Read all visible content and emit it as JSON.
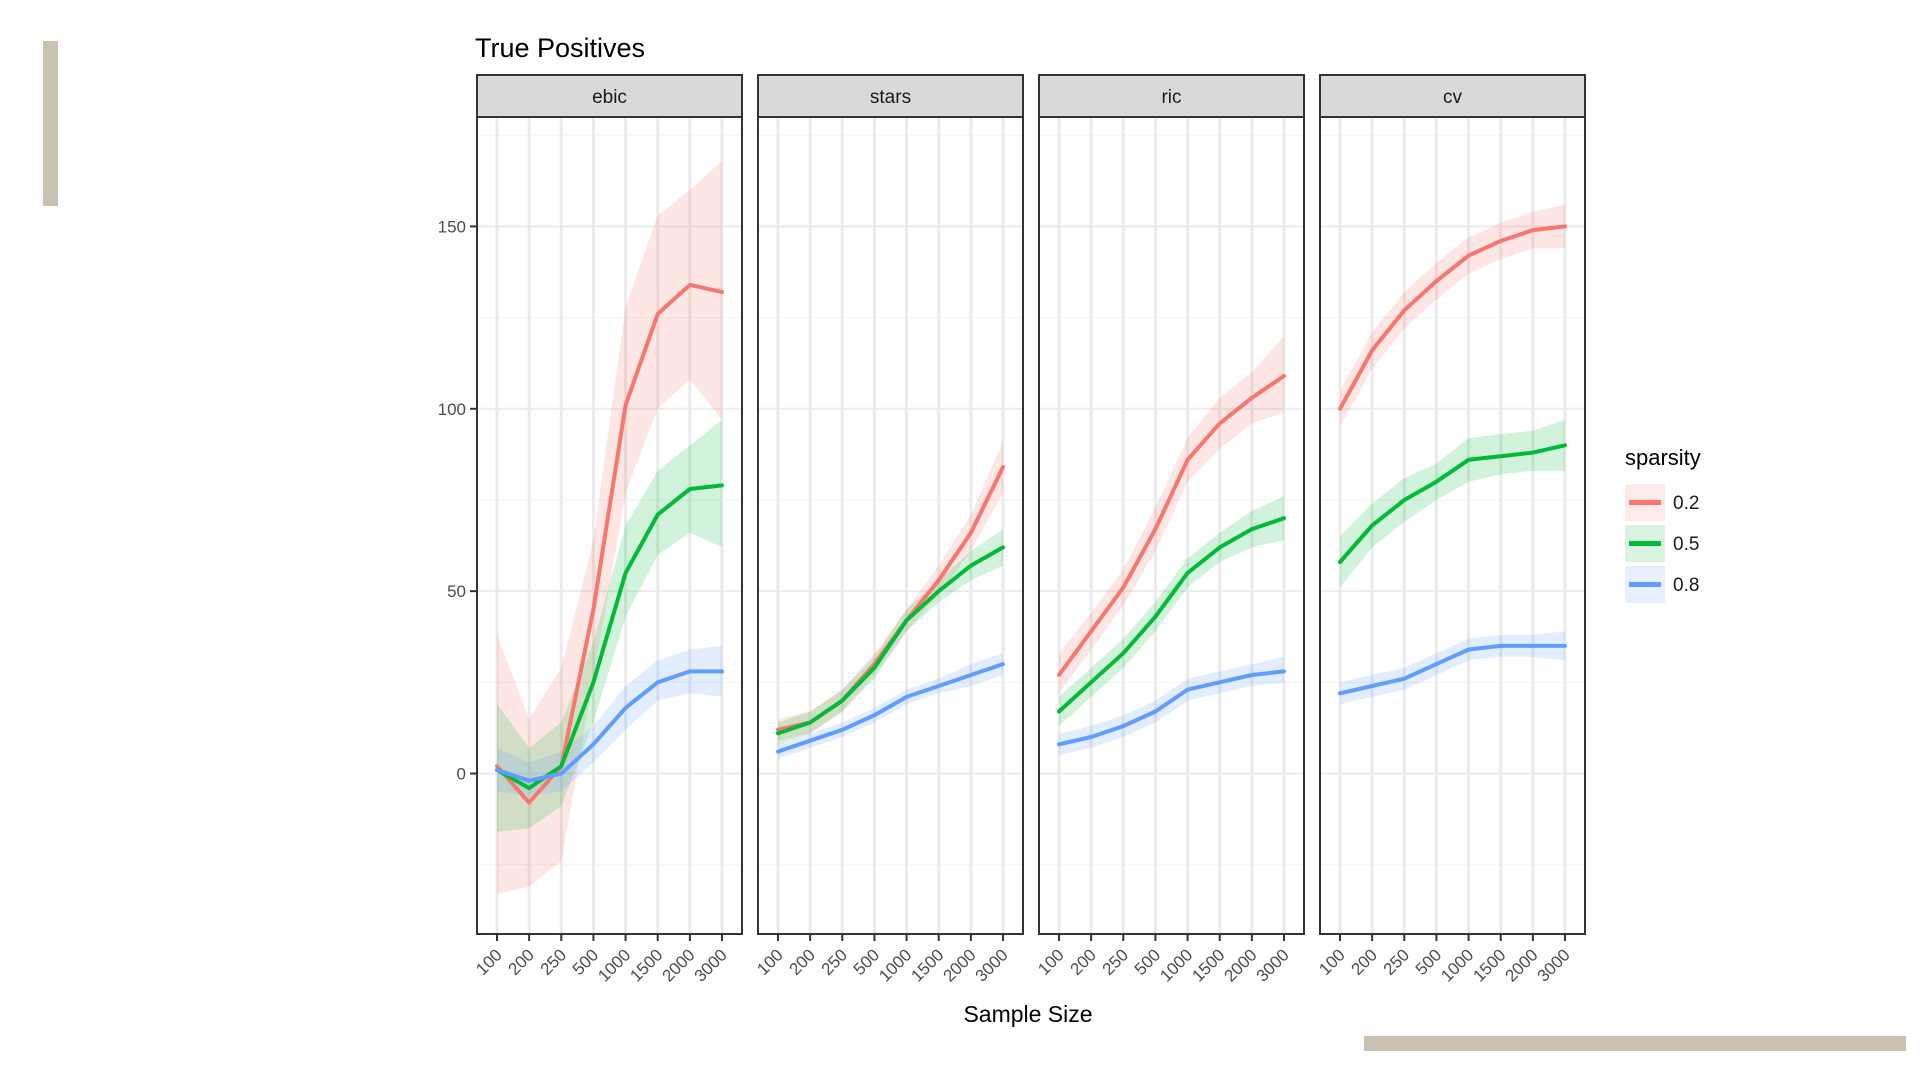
{
  "decor": {
    "accent_color": "#c9c2b0"
  },
  "chart_data": {
    "type": "line",
    "title": "True Positives",
    "xlabel": "Sample Size",
    "ylabel": "",
    "categories": [
      "100",
      "200",
      "250",
      "500",
      "1000",
      "1500",
      "2000",
      "3000"
    ],
    "ylim": [
      -44,
      180
    ],
    "yticks": [
      0,
      50,
      100,
      150
    ],
    "grid": true,
    "legend": {
      "title": "sparsity",
      "placement": "right",
      "entries": [
        "0.2",
        "0.5",
        "0.8"
      ]
    },
    "colors": {
      "0.2": "#f8766d",
      "0.5": "#00ba38",
      "0.8": "#619cff"
    },
    "panels": [
      {
        "name": "ebic",
        "series": [
          {
            "name": "0.2",
            "values": [
              2,
              -8,
              2,
              45,
              101,
              126,
              134,
              132
            ],
            "lower": [
              -33,
              -31,
              -24,
              26,
              77,
              100,
              108,
              97
            ],
            "upper": [
              38,
              15,
              29,
              64,
              128,
              153,
              160,
              168
            ]
          },
          {
            "name": "0.5",
            "values": [
              1,
              -4,
              2,
              25,
              55,
              71,
              78,
              79
            ],
            "lower": [
              -16,
              -15,
              -9,
              14,
              43,
              60,
              66,
              62
            ],
            "upper": [
              19,
              7,
              14,
              36,
              68,
              83,
              90,
              97
            ]
          },
          {
            "name": "0.8",
            "values": [
              1,
              -2,
              0,
              8,
              18,
              25,
              28,
              28
            ],
            "lower": [
              -5,
              -6,
              -5,
              3,
              12,
              20,
              22,
              21
            ],
            "upper": [
              7,
              3,
              6,
              13,
              24,
              31,
              34,
              35
            ]
          }
        ]
      },
      {
        "name": "stars",
        "series": [
          {
            "name": "0.2",
            "values": [
              12,
              14,
              20,
              30,
              42,
              53,
              66,
              84
            ],
            "lower": [
              9,
              11,
              17,
              27,
              39,
              49,
              61,
              77
            ],
            "upper": [
              15,
              17,
              23,
              33,
              45,
              57,
              71,
              91
            ]
          },
          {
            "name": "0.5",
            "values": [
              11,
              14,
              20,
              29,
              42,
              50,
              57,
              62
            ],
            "lower": [
              8,
              11,
              17,
              26,
              39,
              47,
              53,
              57
            ],
            "upper": [
              14,
              17,
              23,
              32,
              45,
              53,
              61,
              67
            ]
          },
          {
            "name": "0.8",
            "values": [
              6,
              9,
              12,
              16,
              21,
              24,
              27,
              30
            ],
            "lower": [
              4,
              7,
              10,
              14,
              19,
              22,
              24,
              27
            ],
            "upper": [
              8,
              11,
              14,
              18,
              23,
              26,
              30,
              33
            ]
          }
        ]
      },
      {
        "name": "ric",
        "series": [
          {
            "name": "0.2",
            "values": [
              27,
              39,
              51,
              67,
              86,
              96,
              103,
              109
            ],
            "lower": [
              22,
              34,
              46,
              61,
              80,
              89,
              96,
              99
            ],
            "upper": [
              33,
              44,
              56,
              73,
              92,
              103,
              110,
              120
            ]
          },
          {
            "name": "0.5",
            "values": [
              17,
              25,
              33,
              43,
              55,
              62,
              67,
              70
            ],
            "lower": [
              13,
              21,
              29,
              39,
              51,
              58,
              62,
              64
            ],
            "upper": [
              21,
              29,
              37,
              47,
              59,
              66,
              72,
              76
            ]
          },
          {
            "name": "0.8",
            "values": [
              8,
              10,
              13,
              17,
              23,
              25,
              27,
              28
            ],
            "lower": [
              5,
              7,
              10,
              14,
              20,
              22,
              24,
              25
            ],
            "upper": [
              11,
              13,
              16,
              20,
              26,
              28,
              30,
              32
            ]
          }
        ]
      },
      {
        "name": "cv",
        "series": [
          {
            "name": "0.2",
            "values": [
              100,
              116,
              127,
              135,
              142,
              146,
              149,
              150
            ],
            "lower": [
              95,
              111,
              122,
              130,
              137,
              141,
              144,
              144
            ],
            "upper": [
              105,
              121,
              132,
              140,
              147,
              151,
              154,
              156
            ]
          },
          {
            "name": "0.5",
            "values": [
              58,
              68,
              75,
              80,
              86,
              87,
              88,
              90
            ],
            "lower": [
              51,
              62,
              69,
              75,
              80,
              82,
              83,
              83
            ],
            "upper": [
              65,
              74,
              81,
              85,
              92,
              93,
              94,
              97
            ]
          },
          {
            "name": "0.8",
            "values": [
              22,
              24,
              26,
              30,
              34,
              35,
              35,
              35
            ],
            "lower": [
              19,
              21,
              23,
              27,
              31,
              32,
              32,
              31
            ],
            "upper": [
              25,
              27,
              29,
              33,
              37,
              38,
              38,
              39
            ]
          }
        ]
      }
    ]
  }
}
